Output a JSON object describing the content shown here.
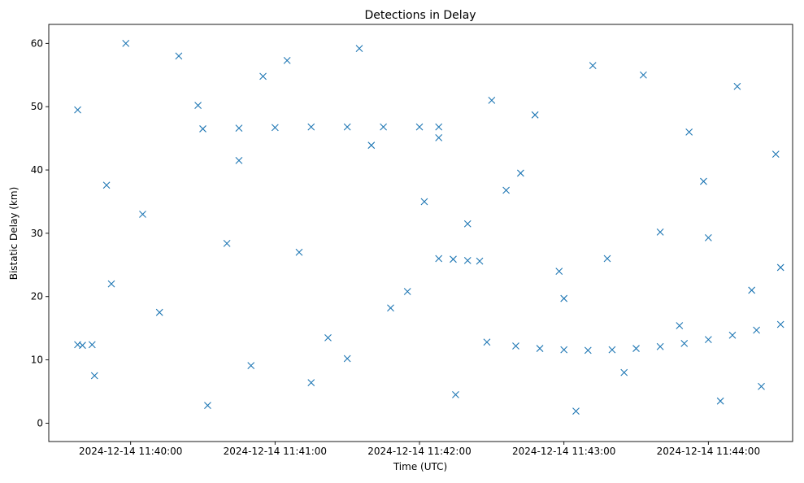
{
  "chart_data": {
    "type": "scatter",
    "title": "Detections in Delay",
    "xlabel": "Time (UTC)",
    "ylabel": "Bistatic Delay (km)",
    "marker": "x",
    "color": "#1f77b4",
    "grid": false,
    "xlim": [
      "2024-12-14 11:39:26",
      "2024-12-14 11:44:35"
    ],
    "ylim": [
      -2.9,
      63.0
    ],
    "xticks": [
      "2024-12-14 11:40:00",
      "2024-12-14 11:41:00",
      "2024-12-14 11:42:00",
      "2024-12-14 11:43:00",
      "2024-12-14 11:44:00"
    ],
    "yticks": [
      0,
      10,
      20,
      30,
      40,
      50,
      60
    ],
    "series": [
      {
        "kind": "noise",
        "x": [
          "2024-12-14 11:39:38",
          "2024-12-14 11:39:45",
          "2024-12-14 11:39:52",
          "2024-12-14 11:40:05",
          "2024-12-14 11:40:20",
          "2024-12-14 11:40:32",
          "2024-12-14 11:40:45",
          "2024-12-14 11:40:55",
          "2024-12-14 11:41:10",
          "2024-12-14 11:41:22",
          "2024-12-14 11:41:35",
          "2024-12-14 11:41:48",
          "2024-12-14 11:42:02",
          "2024-12-14 11:42:15",
          "2024-12-14 11:42:30",
          "2024-12-14 11:42:42",
          "2024-12-14 11:42:58",
          "2024-12-14 11:43:12",
          "2024-12-14 11:43:25",
          "2024-12-14 11:43:40",
          "2024-12-14 11:43:52",
          "2024-12-14 11:44:05",
          "2024-12-14 11:44:18",
          "2024-12-14 11:44:28",
          "2024-12-14 11:39:40",
          "2024-12-14 11:40:12",
          "2024-12-14 11:40:40",
          "2024-12-14 11:41:05",
          "2024-12-14 11:41:30",
          "2024-12-14 11:42:08",
          "2024-12-14 11:42:36",
          "2024-12-14 11:43:05",
          "2024-12-14 11:43:33",
          "2024-12-14 11:44:00",
          "2024-12-14 11:44:22",
          "2024-12-14 11:39:50",
          "2024-12-14 11:40:28",
          "2024-12-14 11:41:15",
          "2024-12-14 11:41:55",
          "2024-12-14 11:42:48",
          "2024-12-14 11:43:18",
          "2024-12-14 11:43:48",
          "2024-12-14 11:44:12",
          "2024-12-14 11:40:50",
          "2024-12-14 11:41:40",
          "2024-12-14 11:42:20",
          "2024-12-14 11:43:00",
          "2024-12-14 11:43:58",
          "2024-12-14 11:44:30",
          "2024-12-14 11:39:58"
        ],
        "y": [
          49.5,
          7.5,
          22.0,
          33.0,
          58.0,
          2.8,
          41.5,
          54.8,
          27.0,
          13.5,
          59.2,
          18.2,
          35.0,
          4.5,
          51.0,
          39.5,
          24.0,
          56.5,
          8.0,
          30.2,
          46.0,
          3.5,
          21.0,
          42.5,
          12.3,
          17.5,
          28.4,
          57.3,
          10.2,
          45.1,
          36.8,
          1.9,
          55.0,
          29.3,
          5.8,
          37.6,
          50.2,
          6.4,
          20.8,
          48.7,
          26.0,
          15.4,
          53.2,
          9.1,
          43.9,
          31.5,
          19.7,
          38.2,
          24.6,
          60.0
        ]
      },
      {
        "kind": "track",
        "x": [
          "2024-12-14 11:40:30",
          "2024-12-14 11:40:45",
          "2024-12-14 11:41:00",
          "2024-12-14 11:41:15",
          "2024-12-14 11:41:30",
          "2024-12-14 11:41:45",
          "2024-12-14 11:42:00",
          "2024-12-14 11:42:08"
        ],
        "y": [
          46.5,
          46.6,
          46.7,
          46.8,
          46.8,
          46.8,
          46.8,
          46.8
        ]
      },
      {
        "kind": "track",
        "x": [
          "2024-12-14 11:42:28",
          "2024-12-14 11:42:40",
          "2024-12-14 11:42:50",
          "2024-12-14 11:43:00",
          "2024-12-14 11:43:10",
          "2024-12-14 11:43:20",
          "2024-12-14 11:43:30",
          "2024-12-14 11:43:40",
          "2024-12-14 11:43:50",
          "2024-12-14 11:44:00",
          "2024-12-14 11:44:10",
          "2024-12-14 11:44:20",
          "2024-12-14 11:44:30"
        ],
        "y": [
          12.8,
          12.2,
          11.8,
          11.6,
          11.5,
          11.6,
          11.8,
          12.1,
          12.6,
          13.2,
          13.9,
          14.7,
          15.6
        ]
      },
      {
        "kind": "track",
        "x": [
          "2024-12-14 11:42:08",
          "2024-12-14 11:42:14",
          "2024-12-14 11:42:20",
          "2024-12-14 11:42:25"
        ],
        "y": [
          26.0,
          25.9,
          25.7,
          25.6
        ]
      },
      {
        "kind": "track",
        "x": [
          "2024-12-14 11:39:38",
          "2024-12-14 11:39:44"
        ],
        "y": [
          12.4,
          12.4
        ]
      }
    ]
  }
}
